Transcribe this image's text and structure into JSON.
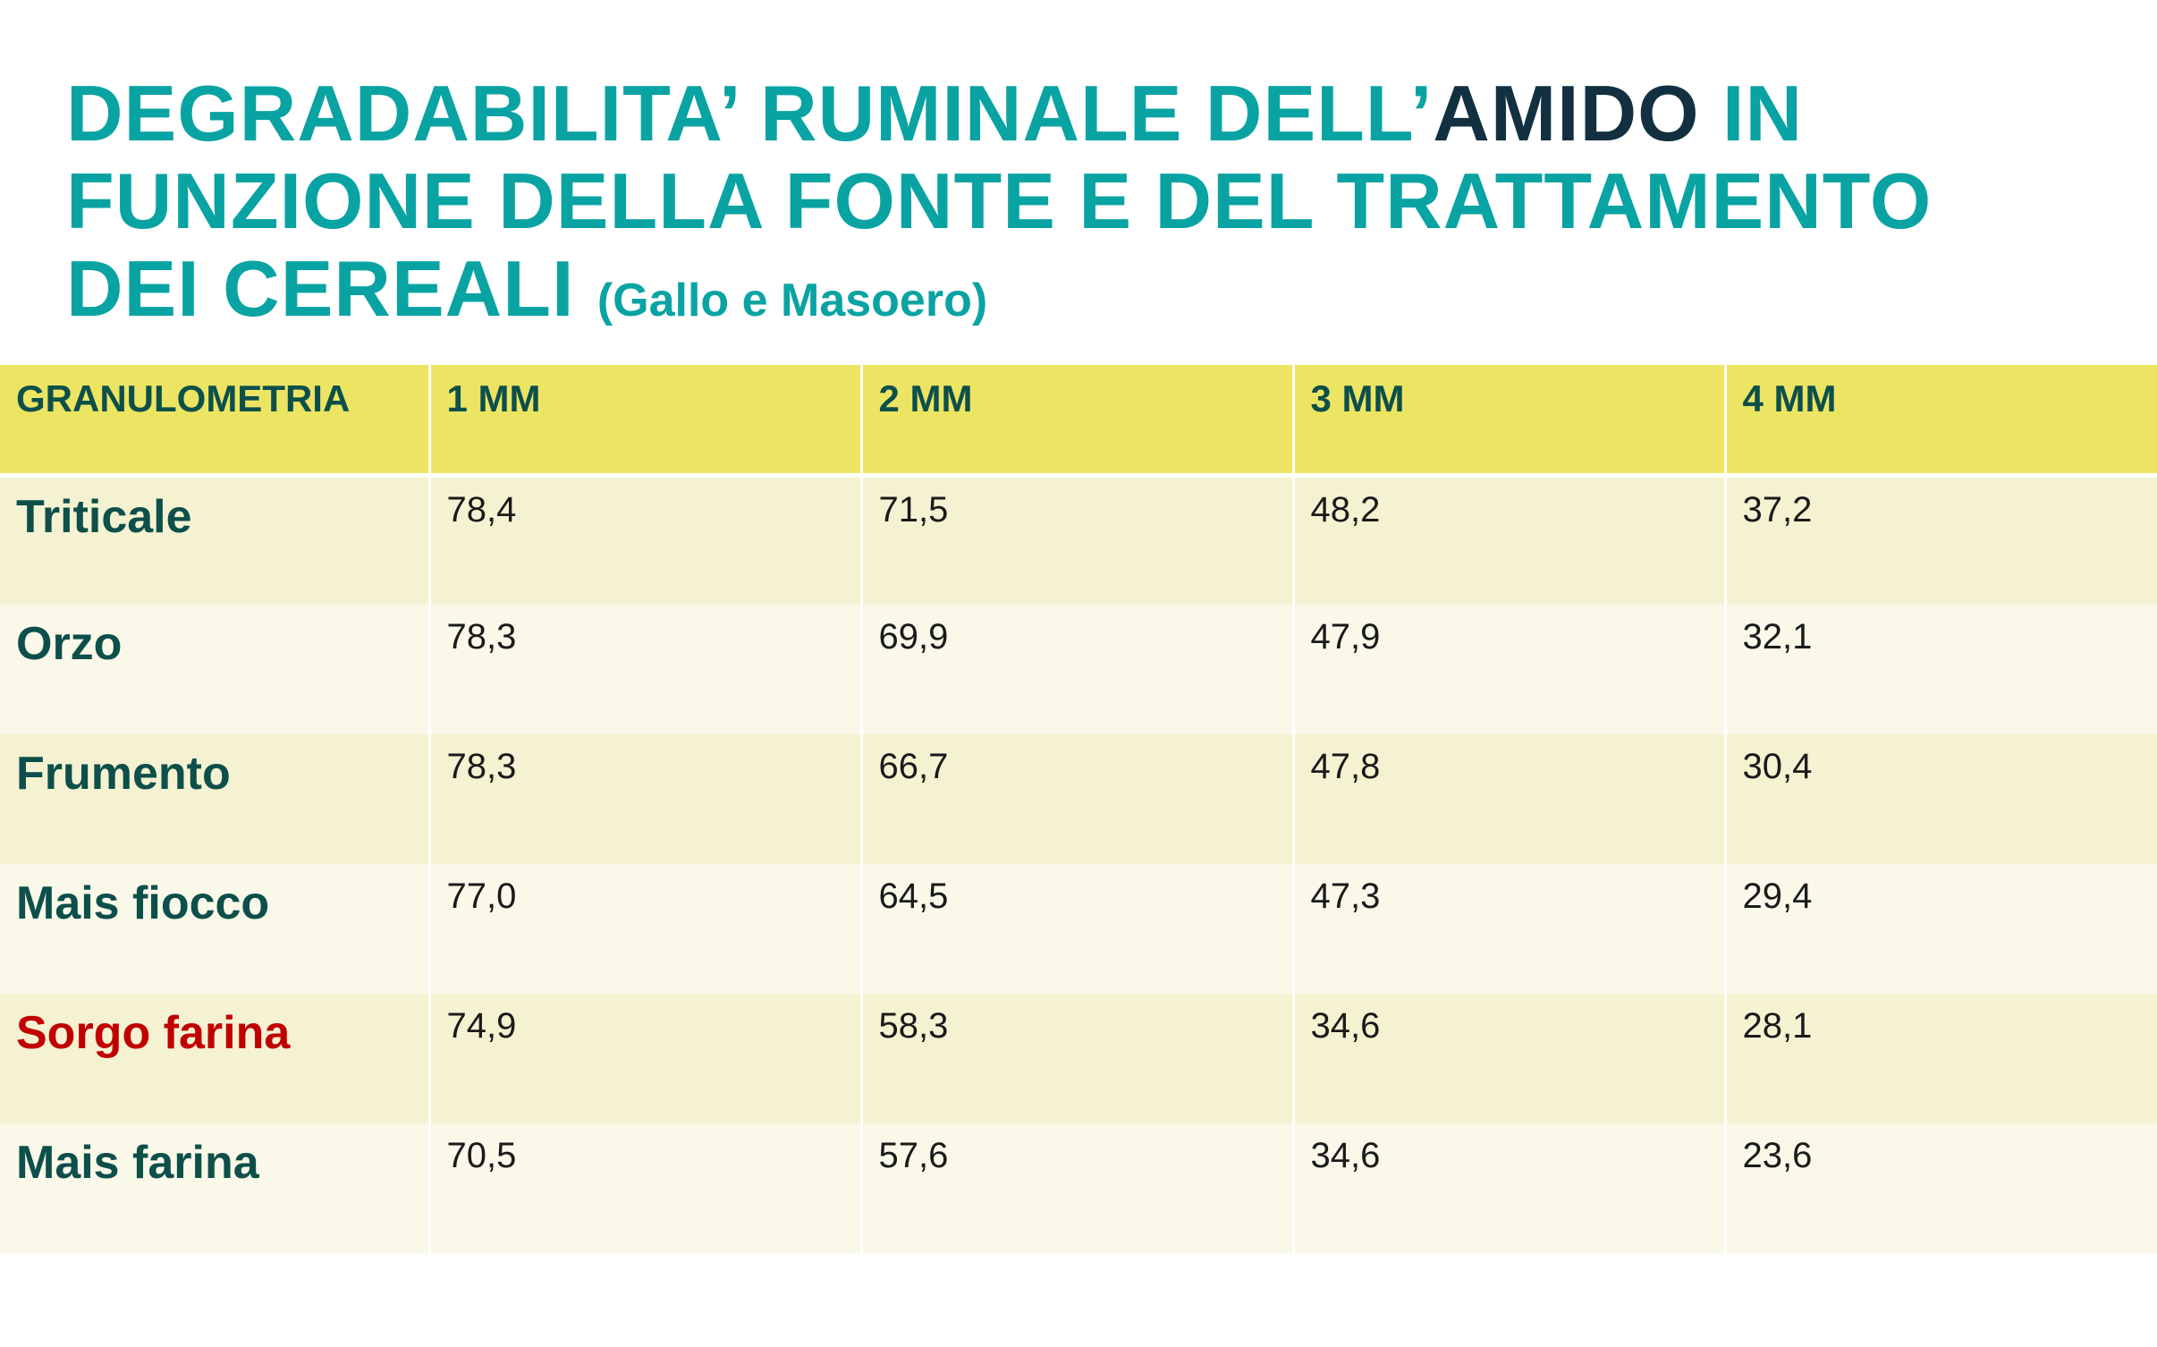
{
  "title": {
    "part1": "DEGRADABILITA’ RUMINALE DELL’",
    "highlight": "AMIDO",
    "part2": " IN FUNZIONE DELLA FONTE E DEL TRATTAMENTO DEI CEREALI",
    "source": "(Gallo e Masoero)"
  },
  "colors": {
    "title": "#0aa3a3",
    "highlight": "#12303f",
    "header_bg": "#ece563",
    "row_label": "#0d4f4a",
    "highlight_row": "#c00000"
  },
  "table": {
    "headers": [
      "GRANULOMETRIA",
      "1 MM",
      "2 MM",
      "3 MM",
      "4 MM"
    ],
    "rows": [
      {
        "label": "Triticale",
        "values": [
          "78,4",
          "71,5",
          "48,2",
          "37,2"
        ]
      },
      {
        "label": "Orzo",
        "values": [
          "78,3",
          "69,9",
          "47,9",
          "32,1"
        ]
      },
      {
        "label": "Frumento",
        "values": [
          "78,3",
          "66,7",
          "47,8",
          "30,4"
        ]
      },
      {
        "label": "Mais fiocco",
        "values": [
          "77,0",
          "64,5",
          "47,3",
          "29,4"
        ]
      },
      {
        "label": "Sorgo farina",
        "values": [
          "74,9",
          "58,3",
          "34,6",
          "28,1"
        ],
        "highlighted": true
      },
      {
        "label": "Mais farina",
        "values": [
          "70,5",
          "57,6",
          "34,6",
          "23,6"
        ]
      }
    ]
  }
}
